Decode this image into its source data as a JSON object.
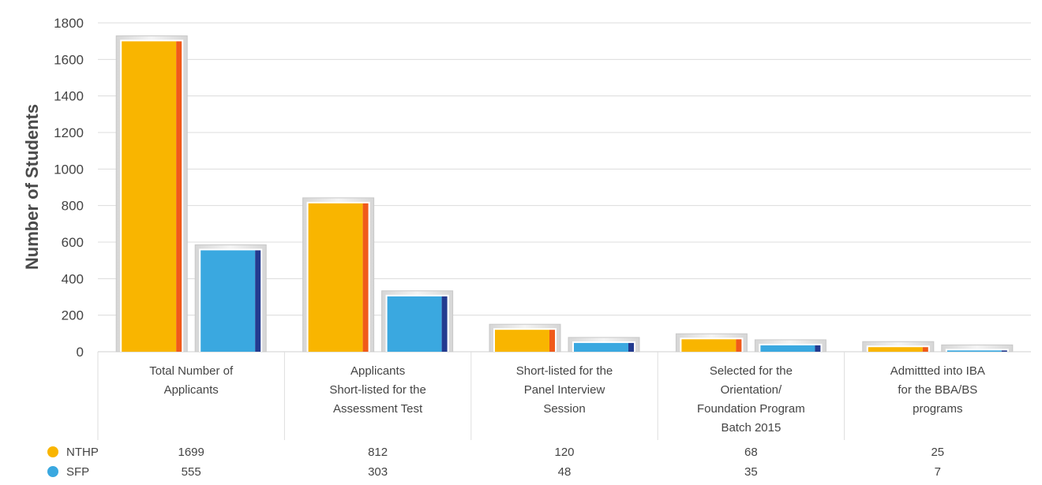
{
  "chart_data": {
    "type": "bar",
    "title": "",
    "xlabel": "",
    "ylabel": "Number of Students",
    "ylim": [
      0,
      1800
    ],
    "yticks": [
      0,
      200,
      400,
      600,
      800,
      1000,
      1200,
      1400,
      1600,
      1800
    ],
    "grid": true,
    "legend": "bottom-left",
    "categories": [
      [
        "Total Number of",
        "Applicants"
      ],
      [
        "Applicants",
        "Short-listed for the",
        "Assessment Test"
      ],
      [
        "Short-listed for the",
        "Panel Interview",
        "Session"
      ],
      [
        "Selected for the",
        "Orientation/",
        "Foundation Program",
        "Batch 2015"
      ],
      [
        "Admittted into IBA",
        "for the BBA/BS",
        "programs"
      ]
    ],
    "series": [
      {
        "name": "NTHP",
        "color": "#F9B500",
        "edge": "#F05A1A",
        "values": [
          1699,
          812,
          120,
          68,
          25
        ]
      },
      {
        "name": "SFP",
        "color": "#3AA8E0",
        "edge": "#233A8F",
        "values": [
          555,
          303,
          48,
          35,
          7
        ]
      }
    ]
  }
}
